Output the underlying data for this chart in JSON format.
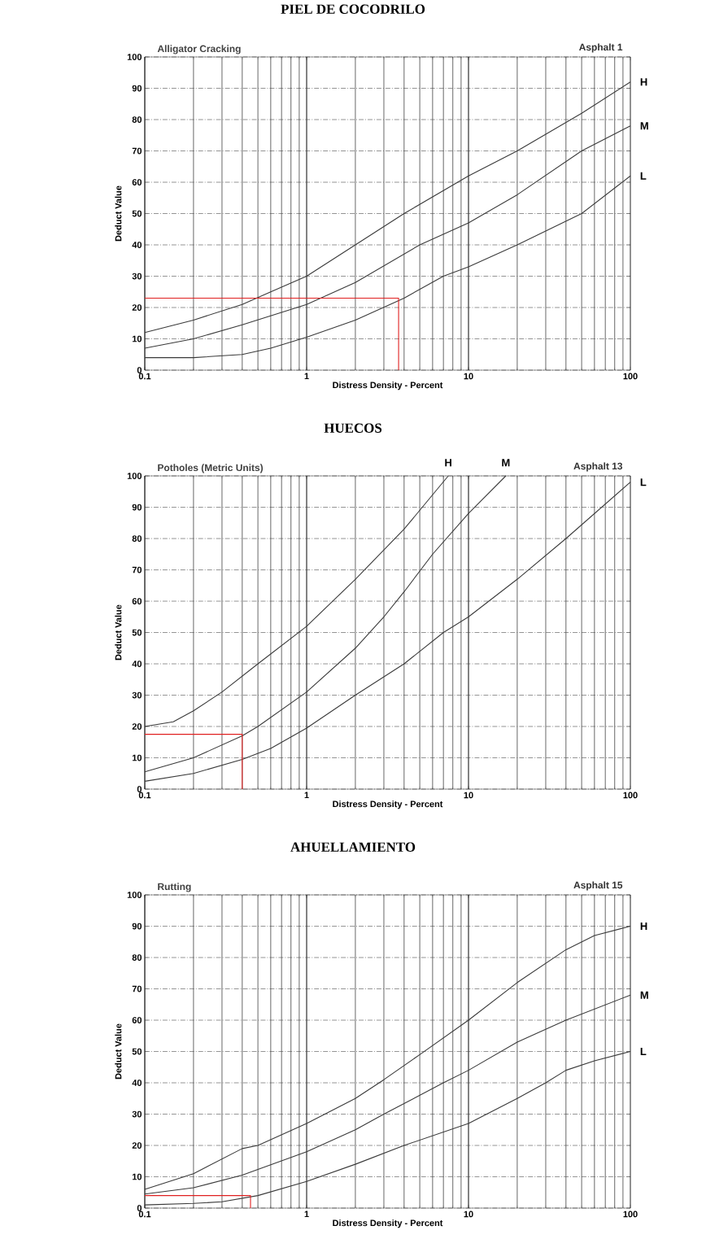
{
  "chart_data": [
    {
      "type": "line",
      "title": "PIEL DE COCODRILO",
      "subtitle": "Alligator Cracking",
      "xlabel": "Distress Density - Percent",
      "ylabel": "Deduct Value",
      "annotations": [
        "Asphalt 1"
      ],
      "log": "x",
      "grid": true,
      "xlim": [
        0.1,
        100
      ],
      "ylim": [
        0,
        100
      ],
      "xticks": [
        0.1,
        1,
        10,
        100
      ],
      "yticks": [
        0,
        10,
        20,
        30,
        40,
        50,
        60,
        70,
        80,
        90,
        100
      ],
      "series": [
        {
          "name": "H",
          "color": "#3a3a3a",
          "x": [
            0.1,
            0.2,
            0.4,
            0.6,
            1,
            2,
            4,
            10,
            20,
            50,
            100
          ],
          "values": [
            12,
            16,
            21,
            25,
            30,
            40,
            50,
            62,
            70,
            82,
            92
          ]
        },
        {
          "name": "M",
          "color": "#3a3a3a",
          "x": [
            0.1,
            0.2,
            0.4,
            1,
            2,
            5,
            10,
            20,
            50,
            100
          ],
          "values": [
            7,
            10,
            14.5,
            21,
            28,
            40,
            47,
            56,
            70,
            78
          ]
        },
        {
          "name": "L",
          "color": "#3a3a3a",
          "x": [
            0.1,
            0.2,
            0.4,
            0.6,
            1,
            2,
            4,
            7,
            10,
            20,
            50,
            100
          ],
          "values": [
            4,
            4,
            5,
            7,
            10.5,
            16,
            23,
            30,
            33,
            40,
            50,
            62
          ]
        },
        {
          "color": "#e02020",
          "x": [
            0.1,
            3.7,
            3.7
          ],
          "values": [
            23,
            23,
            0
          ]
        }
      ]
    },
    {
      "type": "line",
      "title": "HUECOS",
      "subtitle": "Potholes (Metric Units)",
      "xlabel": "Distress Density - Percent",
      "ylabel": "Deduct Value",
      "annotations": [
        "Asphalt 13"
      ],
      "log": "x",
      "grid": true,
      "xlim": [
        0.1,
        100
      ],
      "ylim": [
        0,
        100
      ],
      "xticks": [
        0.1,
        1,
        10,
        100
      ],
      "yticks": [
        0,
        10,
        20,
        30,
        40,
        50,
        60,
        70,
        80,
        90,
        100
      ],
      "series": [
        {
          "name": "H",
          "color": "#3a3a3a",
          "x": [
            0.1,
            0.15,
            0.2,
            0.3,
            0.5,
            1,
            2,
            4,
            7.5
          ],
          "values": [
            20,
            21.5,
            25,
            31,
            40,
            52,
            67,
            83,
            100
          ]
        },
        {
          "name": "M",
          "color": "#3a3a3a",
          "x": [
            0.1,
            0.2,
            0.4,
            0.5,
            1,
            2,
            3,
            4,
            6,
            10,
            17
          ],
          "values": [
            5.5,
            10,
            17,
            20,
            31,
            45,
            55,
            63,
            75,
            88,
            100
          ]
        },
        {
          "name": "L",
          "color": "#3a3a3a",
          "x": [
            0.1,
            0.2,
            0.4,
            0.6,
            1,
            2,
            4,
            7,
            10,
            20,
            40,
            100
          ],
          "values": [
            2.5,
            5,
            9.5,
            13,
            19.5,
            30,
            40,
            50,
            55,
            67,
            80,
            98
          ]
        },
        {
          "color": "#e02020",
          "x": [
            0.1,
            0.4,
            0.4
          ],
          "values": [
            17.5,
            17.5,
            0
          ]
        }
      ]
    },
    {
      "type": "line",
      "title": "AHUELLAMIENTO",
      "subtitle": "Rutting",
      "xlabel": "Distress Density - Percent",
      "ylabel": "Deduct Value",
      "annotations": [
        "Asphalt 15"
      ],
      "log": "x",
      "grid": true,
      "xlim": [
        0.1,
        100
      ],
      "ylim": [
        0,
        100
      ],
      "xticks": [
        0.1,
        1,
        10,
        100
      ],
      "yticks": [
        0,
        10,
        20,
        30,
        40,
        50,
        60,
        70,
        80,
        90,
        100
      ],
      "series": [
        {
          "name": "H",
          "color": "#3a3a3a",
          "x": [
            0.1,
            0.2,
            0.4,
            0.5,
            1,
            2,
            3,
            5,
            10,
            20,
            40,
            60,
            100
          ],
          "values": [
            6,
            11,
            19,
            20,
            27,
            35,
            41,
            49,
            60,
            72,
            82.5,
            87,
            90
          ]
        },
        {
          "name": "M",
          "color": "#3a3a3a",
          "x": [
            0.1,
            0.2,
            0.4,
            1,
            2,
            3,
            7,
            10,
            20,
            40,
            100
          ],
          "values": [
            4.5,
            6.5,
            10.5,
            18,
            25,
            30,
            40,
            44,
            53,
            60,
            68
          ]
        },
        {
          "name": "L",
          "color": "#3a3a3a",
          "x": [
            0.1,
            0.2,
            0.3,
            0.5,
            1,
            2,
            4,
            10,
            20,
            30,
            40,
            60,
            100
          ],
          "values": [
            1,
            1.5,
            2,
            4,
            8.5,
            14,
            20,
            27,
            35,
            40,
            44,
            47,
            50
          ]
        },
        {
          "color": "#e02020",
          "x": [
            0.1,
            0.45,
            0.45
          ],
          "values": [
            4,
            4,
            0
          ]
        }
      ]
    }
  ]
}
